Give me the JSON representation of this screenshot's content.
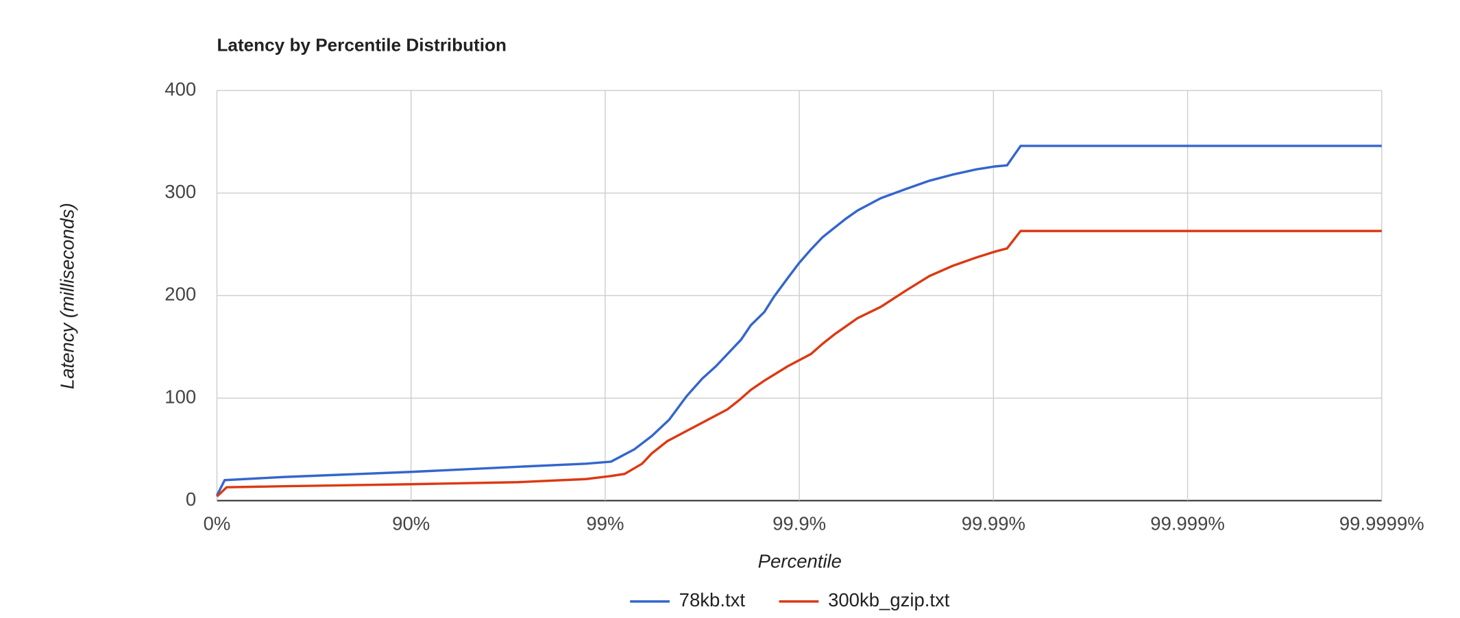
{
  "chart_data": {
    "type": "line",
    "title": "Latency by Percentile Distribution",
    "x_label": "Percentile",
    "y_label": "Latency (milliseconds)",
    "xlim": [
      0,
      6
    ],
    "ylim": [
      0,
      400
    ],
    "xticks": [
      {
        "value": 0,
        "label": "0%"
      },
      {
        "value": 1,
        "label": "90%"
      },
      {
        "value": 2,
        "label": "99%"
      },
      {
        "value": 3,
        "label": "99.9%"
      },
      {
        "value": 4,
        "label": "99.99%"
      },
      {
        "value": 5,
        "label": "99.999%"
      },
      {
        "value": 6,
        "label": "99.9999%"
      }
    ],
    "yticks": [
      0,
      100,
      200,
      300,
      400
    ],
    "grid": true,
    "legend": "bottom",
    "series": [
      {
        "name": "78kb.txt",
        "color": "#3366cc",
        "x": [
          0,
          0.04,
          0.34,
          1.0,
          1.55,
          1.9,
          2.03,
          2.09,
          2.15,
          2.24,
          2.33,
          2.42,
          2.5,
          2.57,
          2.63,
          2.7,
          2.75,
          2.82,
          2.87,
          2.94,
          3.0,
          3.06,
          3.12,
          3.18,
          3.24,
          3.3,
          3.42,
          3.55,
          3.67,
          3.79,
          3.91,
          4.01,
          4.07,
          4.14,
          6
        ],
        "values": [
          5,
          20,
          23,
          28,
          33,
          36,
          38,
          44,
          50,
          63,
          79,
          102,
          119,
          131,
          143,
          157,
          171,
          184,
          199,
          217,
          232,
          245,
          257,
          266,
          275,
          283,
          295,
          304,
          312,
          318,
          323,
          326,
          327,
          346,
          346
        ]
      },
      {
        "name": "300kb_gzip.txt",
        "color": "#dc3912",
        "x": [
          0,
          0.05,
          0.34,
          1.0,
          1.55,
          1.9,
          2.03,
          2.1,
          2.19,
          2.24,
          2.32,
          2.43,
          2.51,
          2.63,
          2.69,
          2.75,
          2.82,
          2.94,
          3.06,
          3.12,
          3.18,
          3.24,
          3.3,
          3.42,
          3.55,
          3.67,
          3.79,
          3.91,
          4.01,
          4.07,
          4.14,
          6
        ],
        "values": [
          4,
          13,
          14,
          16,
          18,
          21,
          24,
          26,
          36,
          46,
          58,
          69,
          77,
          89,
          98,
          108,
          117,
          131,
          143,
          153,
          162,
          170,
          178,
          189,
          205,
          219,
          229,
          237,
          243,
          246,
          263,
          263
        ]
      }
    ]
  }
}
